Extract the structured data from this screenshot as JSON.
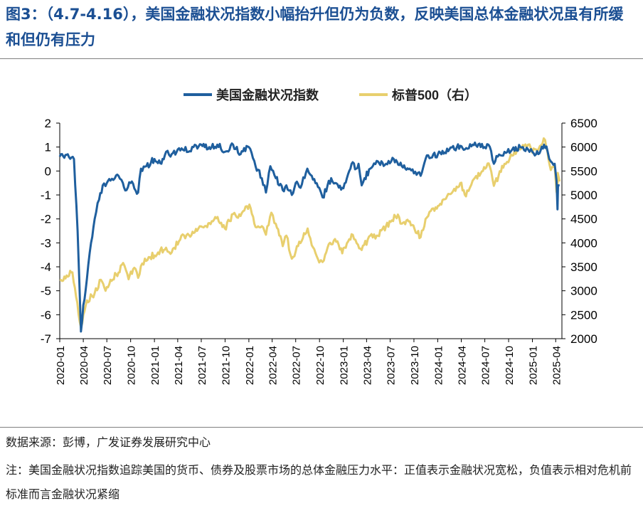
{
  "figure": {
    "title": "图3：（4.7-4.16），美国金融状况指数小幅抬升但仍为负数，反映美国总体金融状况虽有所缓和但仍有压力",
    "source": "数据来源：彭博，广发证券发展研究中心",
    "note": "注：美国金融状况指数追踪美国的货币、债券及股票市场的总体金融压力水平：正值表示金融状况宽松，负值表示相对危机前标准而言金融状况紧缩"
  },
  "colors": {
    "fci": "#1f5f9e",
    "spx": "#e8cf6e",
    "title": "#1b4f93"
  },
  "chart_data": {
    "type": "line",
    "legend_position": "top-center",
    "grid": false,
    "x_tick_labels": [
      "2020-01",
      "2020-04",
      "2020-07",
      "2020-10",
      "2021-01",
      "2021-04",
      "2021-07",
      "2021-10",
      "2022-01",
      "2022-04",
      "2022-07",
      "2022-10",
      "2023-01",
      "2023-04",
      "2023-07",
      "2023-10",
      "2024-01",
      "2024-04",
      "2024-07",
      "2024-10",
      "2025-01",
      "2025-04"
    ],
    "y_left": {
      "ylim": [
        -7,
        2
      ],
      "ticks": [
        "2",
        "1",
        "0",
        "-1",
        "-2",
        "-3",
        "-4",
        "-5",
        "-6",
        "-7"
      ]
    },
    "y_right": {
      "ylim": [
        2000,
        6500
      ],
      "ticks": [
        "6500",
        "6000",
        "5500",
        "5000",
        "4500",
        "4000",
        "3500",
        "3000",
        "2500",
        "2000"
      ]
    },
    "series": [
      {
        "name": "美国金融状况指数",
        "axis": "left",
        "x": [
          "2020-01-01",
          "2020-02-01",
          "2020-02-25",
          "2020-03-10",
          "2020-03-23",
          "2020-04-01",
          "2020-04-15",
          "2020-05-01",
          "2020-05-15",
          "2020-06-01",
          "2020-06-15",
          "2020-07-01",
          "2020-07-15",
          "2020-08-01",
          "2020-08-15",
          "2020-09-01",
          "2020-09-15",
          "2020-10-01",
          "2020-10-30",
          "2020-11-10",
          "2020-12-01",
          "2021-01-01",
          "2021-01-28",
          "2021-02-15",
          "2021-03-04",
          "2021-04-01",
          "2021-05-01",
          "2021-05-12",
          "2021-06-01",
          "2021-07-01",
          "2021-08-01",
          "2021-09-01",
          "2021-09-30",
          "2021-11-01",
          "2021-11-30",
          "2022-01-01",
          "2022-01-27",
          "2022-02-20",
          "2022-03-08",
          "2022-03-25",
          "2022-04-15",
          "2022-05-12",
          "2022-05-26",
          "2022-06-16",
          "2022-07-01",
          "2022-07-20",
          "2022-08-15",
          "2022-09-01",
          "2022-09-30",
          "2022-10-13",
          "2022-11-01",
          "2022-11-15",
          "2022-12-01",
          "2022-12-28",
          "2023-01-15",
          "2023-02-02",
          "2023-02-20",
          "2023-03-01",
          "2023-03-13",
          "2023-03-24",
          "2023-04-15",
          "2023-05-15",
          "2023-06-15",
          "2023-07-15",
          "2023-08-15",
          "2023-09-15",
          "2023-10-01",
          "2023-10-27",
          "2023-11-15",
          "2023-12-15",
          "2024-01-15",
          "2024-02-15",
          "2024-03-15",
          "2024-04-15",
          "2024-05-15",
          "2024-06-15",
          "2024-07-15",
          "2024-08-05",
          "2024-08-20",
          "2024-09-15",
          "2024-10-15",
          "2024-11-15",
          "2024-12-15",
          "2025-01-01",
          "2025-01-15",
          "2025-02-15",
          "2025-03-01",
          "2025-03-13",
          "2025-03-28",
          "2025-04-04",
          "2025-04-08",
          "2025-04-10",
          "2025-04-16"
        ],
        "values": [
          0.6,
          0.7,
          0.5,
          -2.5,
          -6.7,
          -5.6,
          -4.5,
          -3.0,
          -2.0,
          -1.2,
          -0.6,
          -0.5,
          -0.4,
          -0.3,
          -0.2,
          -0.5,
          -0.8,
          -0.5,
          -0.9,
          0.1,
          0.2,
          0.5,
          0.3,
          0.8,
          0.6,
          0.9,
          1.0,
          0.8,
          1.0,
          1.1,
          1.0,
          1.1,
          0.8,
          1.1,
          0.7,
          1.0,
          0.2,
          -0.3,
          -0.9,
          0.2,
          -0.3,
          -0.8,
          -0.6,
          -1.0,
          -0.5,
          -0.7,
          0.1,
          -0.2,
          -0.7,
          -1.1,
          -0.6,
          -0.3,
          -0.5,
          -0.7,
          -0.3,
          0.3,
          0.1,
          0.3,
          -0.6,
          -0.3,
          0.1,
          0.4,
          0.3,
          0.5,
          0.2,
          0.1,
          -0.1,
          -0.2,
          0.5,
          0.7,
          0.7,
          0.9,
          1.0,
          0.9,
          1.1,
          1.0,
          1.1,
          0.3,
          0.6,
          0.8,
          0.9,
          1.0,
          0.9,
          0.8,
          0.7,
          1.1,
          0.8,
          0.4,
          0.3,
          -0.4,
          -1.6,
          -0.6,
          -0.6
        ]
      },
      {
        "name": "标普500（右）",
        "axis": "right",
        "x": [
          "2020-01-01",
          "2020-02-19",
          "2020-03-09",
          "2020-03-23",
          "2020-04-15",
          "2020-05-15",
          "2020-06-08",
          "2020-06-26",
          "2020-07-15",
          "2020-08-15",
          "2020-09-02",
          "2020-09-23",
          "2020-10-15",
          "2020-10-30",
          "2020-11-15",
          "2020-12-15",
          "2021-01-15",
          "2021-02-15",
          "2021-03-04",
          "2021-04-15",
          "2021-05-15",
          "2021-06-15",
          "2021-07-15",
          "2021-08-15",
          "2021-09-02",
          "2021-09-30",
          "2021-11-01",
          "2021-11-30",
          "2022-01-03",
          "2022-01-27",
          "2022-02-20",
          "2022-03-08",
          "2022-03-29",
          "2022-04-15",
          "2022-05-12",
          "2022-05-26",
          "2022-06-16",
          "2022-07-01",
          "2022-08-16",
          "2022-09-01",
          "2022-09-30",
          "2022-10-13",
          "2022-11-01",
          "2022-11-30",
          "2022-12-28",
          "2023-02-02",
          "2023-03-13",
          "2023-04-15",
          "2023-05-15",
          "2023-06-15",
          "2023-07-31",
          "2023-08-15",
          "2023-09-15",
          "2023-10-27",
          "2023-11-15",
          "2023-12-15",
          "2024-01-15",
          "2024-02-15",
          "2024-03-28",
          "2024-04-19",
          "2024-05-15",
          "2024-06-15",
          "2024-07-16",
          "2024-08-05",
          "2024-09-15",
          "2024-10-15",
          "2024-11-15",
          "2024-12-15",
          "2025-01-01",
          "2025-01-15",
          "2025-02-19",
          "2025-03-13",
          "2025-03-28",
          "2025-04-04",
          "2025-04-08",
          "2025-04-09",
          "2025-04-16"
        ],
        "values": [
          3230,
          3386,
          2750,
          2237,
          2800,
          2950,
          3230,
          3000,
          3230,
          3380,
          3580,
          3240,
          3480,
          3270,
          3570,
          3700,
          3800,
          3900,
          3770,
          4150,
          4160,
          4250,
          4350,
          4450,
          4540,
          4300,
          4600,
          4560,
          4800,
          4330,
          4350,
          4170,
          4630,
          4400,
          3930,
          4150,
          3670,
          3820,
          4300,
          3950,
          3590,
          3600,
          3900,
          4080,
          3780,
          4180,
          3850,
          4150,
          4150,
          4350,
          4590,
          4400,
          4450,
          4120,
          4500,
          4720,
          4800,
          5020,
          5250,
          4970,
          5300,
          5450,
          5660,
          5190,
          5650,
          5820,
          5950,
          6050,
          5880,
          5950,
          6145,
          5520,
          5600,
          5070,
          4980,
          5460,
          5280
        ]
      }
    ]
  }
}
